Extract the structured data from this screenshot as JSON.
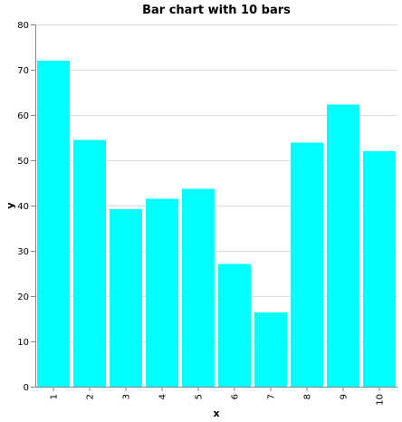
{
  "chart_data": {
    "type": "bar",
    "title": "Bar chart with 10 bars",
    "xlabel": "x",
    "ylabel": "y",
    "categories": [
      "1",
      "2",
      "3",
      "4",
      "5",
      "6",
      "7",
      "8",
      "9",
      "10"
    ],
    "values": [
      72,
      54.5,
      39.2,
      41.5,
      43.7,
      27.1,
      16.4,
      53.9,
      62.3,
      52
    ],
    "ylim": [
      0,
      80
    ],
    "yticks": [
      "0",
      "10",
      "20",
      "30",
      "40",
      "50",
      "60",
      "70",
      "80"
    ],
    "grid": true,
    "bar_color": "#00ffff"
  }
}
